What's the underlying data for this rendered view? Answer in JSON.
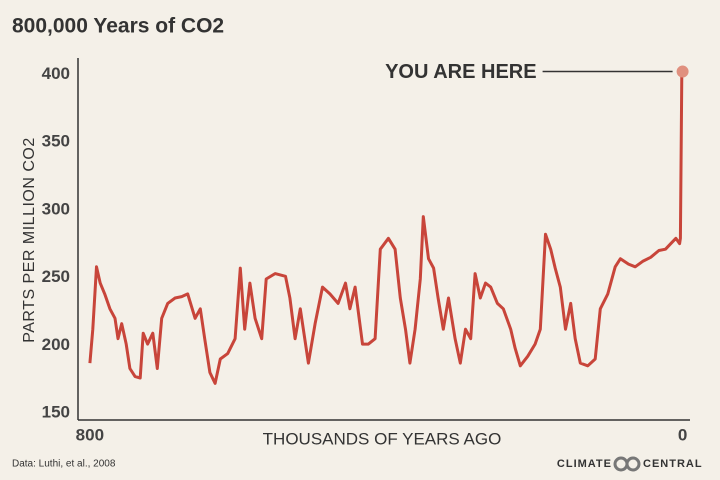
{
  "chart_data": {
    "type": "line",
    "title": "800,000 Years of CO2",
    "ylabel": "PARTS PER MILLION  CO2",
    "xlabel": "THOUSANDS OF YEARS AGO",
    "annotation": "YOU ARE HERE",
    "source": "Data: Luthi, et al., 2008",
    "logo": [
      "CLIMATE",
      "CENTRAL"
    ],
    "xlim": [
      816,
      -10
    ],
    "xticks": [
      800,
      0
    ],
    "ylim": [
      145,
      412
    ],
    "yticks": [
      150,
      200,
      250,
      300,
      350,
      400
    ],
    "grid": false,
    "x": [
      800,
      796,
      791,
      786,
      780,
      773,
      766,
      762,
      757,
      751,
      746,
      739,
      732,
      728,
      722,
      715,
      709,
      703,
      695,
      685,
      676,
      668,
      658,
      651,
      645,
      638,
      631,
      624,
      614,
      604,
      597,
      591,
      584,
      577,
      568,
      562,
      550,
      536,
      530,
      523,
      516,
      505,
      496,
      486,
      476,
      465,
      455,
      449,
      442,
      432,
      424,
      415,
      408,
      397,
      388,
      381,
      374,
      368,
      361,
      354,
      350,
      343,
      336,
      330,
      323,
      316,
      307,
      300,
      293,
      286,
      280,
      273,
      266,
      259,
      250,
      242,
      232,
      226,
      219,
      209,
      199,
      192,
      185,
      178,
      172,
      165,
      158,
      151,
      145,
      138,
      128,
      118,
      111,
      101,
      91,
      84,
      73,
      64,
      54,
      43,
      32,
      23,
      16,
      9,
      4,
      3,
      1,
      0
    ],
    "series": [
      {
        "name": "CO2",
        "color": "#c8453a",
        "marker_color": "#e0907f",
        "values": [
          187,
          212,
          258,
          246,
          238,
          227,
          220,
          205,
          216,
          201,
          183,
          177,
          176,
          209,
          201,
          209,
          183,
          220,
          231,
          235,
          236,
          238,
          220,
          227,
          205,
          180,
          172,
          190,
          194,
          205,
          257,
          212,
          246,
          220,
          205,
          249,
          253,
          251,
          235,
          205,
          227,
          187,
          216,
          243,
          238,
          231,
          246,
          227,
          243,
          201,
          201,
          205,
          271,
          279,
          271,
          235,
          212,
          187,
          212,
          249,
          295,
          264,
          257,
          235,
          212,
          235,
          205,
          187,
          212,
          205,
          253,
          235,
          246,
          243,
          231,
          227,
          212,
          198,
          185,
          192,
          201,
          212,
          282,
          271,
          257,
          243,
          212,
          231,
          205,
          187,
          185,
          190,
          227,
          238,
          258,
          264,
          260,
          258,
          262,
          265,
          270,
          271,
          275,
          279,
          275,
          279,
          400,
          402
        ]
      }
    ]
  }
}
